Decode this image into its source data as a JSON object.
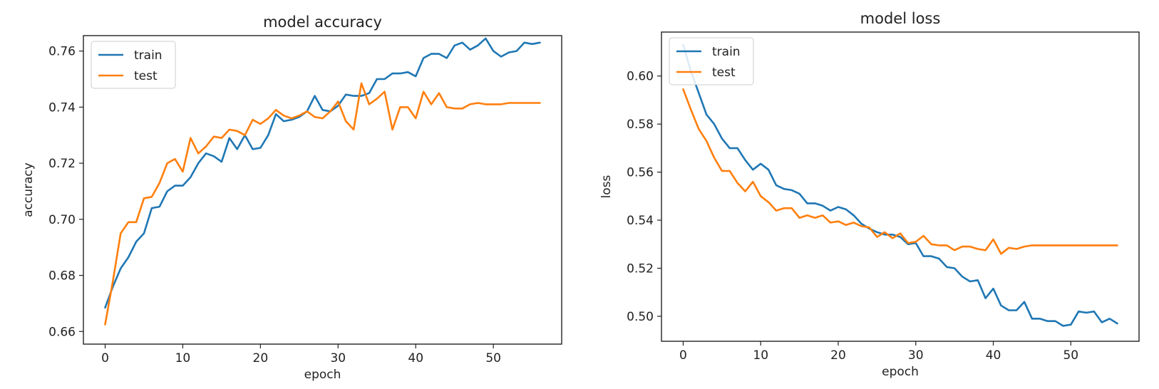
{
  "chart_data": [
    {
      "type": "line",
      "title": "model accuracy",
      "xlabel": "epoch",
      "ylabel": "accuracy",
      "xlim": [
        -2.8,
        58.8
      ],
      "ylim": [
        0.6555,
        0.7655
      ],
      "x_ticks": [
        0,
        10,
        20,
        30,
        40,
        50
      ],
      "y_ticks": [
        0.66,
        0.68,
        0.7,
        0.72,
        0.74,
        0.76
      ],
      "y_tick_labels": [
        "0.66",
        "0.68",
        "0.70",
        "0.72",
        "0.74",
        "0.76"
      ],
      "legend_position": "top-left",
      "grid": false,
      "series": [
        {
          "name": "train",
          "color": "#1f77b4",
          "values": [
            0.6685,
            0.676,
            0.6825,
            0.6865,
            0.692,
            0.695,
            0.704,
            0.7045,
            0.71,
            0.712,
            0.712,
            0.715,
            0.72,
            0.7235,
            0.7225,
            0.7205,
            0.729,
            0.725,
            0.73,
            0.725,
            0.7255,
            0.73,
            0.7375,
            0.735,
            0.7355,
            0.7365,
            0.7385,
            0.744,
            0.739,
            0.7385,
            0.7405,
            0.7445,
            0.744,
            0.744,
            0.745,
            0.75,
            0.75,
            0.752,
            0.752,
            0.7525,
            0.751,
            0.7575,
            0.759,
            0.759,
            0.7575,
            0.762,
            0.763,
            0.7605,
            0.762,
            0.7645,
            0.76,
            0.758,
            0.7595,
            0.76,
            0.763,
            0.7625,
            0.763
          ]
        },
        {
          "name": "test",
          "color": "#ff7f0e",
          "values": [
            0.6625,
            0.678,
            0.695,
            0.699,
            0.699,
            0.7075,
            0.708,
            0.713,
            0.72,
            0.7215,
            0.717,
            0.729,
            0.7235,
            0.726,
            0.7295,
            0.729,
            0.732,
            0.7315,
            0.73,
            0.7355,
            0.734,
            0.736,
            0.739,
            0.737,
            0.736,
            0.737,
            0.7385,
            0.7365,
            0.736,
            0.7385,
            0.742,
            0.735,
            0.732,
            0.7485,
            0.741,
            0.743,
            0.7455,
            0.732,
            0.74,
            0.74,
            0.736,
            0.7455,
            0.741,
            0.745,
            0.74,
            0.7395,
            0.7395,
            0.741,
            0.7415,
            0.741,
            0.741,
            0.741,
            0.7415,
            0.7415,
            0.7415,
            0.7415,
            0.7415
          ]
        }
      ]
    },
    {
      "type": "line",
      "title": "model loss",
      "xlabel": "epoch",
      "ylabel": "loss",
      "xlim": [
        -2.8,
        58.8
      ],
      "ylim": [
        0.4896,
        0.6183
      ],
      "x_ticks": [
        0,
        10,
        20,
        30,
        40,
        50
      ],
      "y_ticks": [
        0.5,
        0.52,
        0.54,
        0.56,
        0.58,
        0.6
      ],
      "y_tick_labels": [
        "0.50",
        "0.52",
        "0.54",
        "0.56",
        "0.58",
        "0.60"
      ],
      "legend_position": "top-left",
      "grid": false,
      "series": [
        {
          "name": "train",
          "color": "#1f77b4",
          "values": [
            0.613,
            0.602,
            0.593,
            0.584,
            0.58,
            0.574,
            0.57,
            0.57,
            0.565,
            0.561,
            0.5635,
            0.561,
            0.5545,
            0.553,
            0.5525,
            0.551,
            0.547,
            0.547,
            0.546,
            0.544,
            0.5455,
            0.5445,
            0.542,
            0.5385,
            0.5365,
            0.535,
            0.534,
            0.534,
            0.533,
            0.53,
            0.5305,
            0.525,
            0.525,
            0.524,
            0.5205,
            0.52,
            0.5165,
            0.5145,
            0.515,
            0.5075,
            0.5115,
            0.5045,
            0.5025,
            0.5025,
            0.506,
            0.499,
            0.499,
            0.498,
            0.498,
            0.496,
            0.4965,
            0.502,
            0.5015,
            0.502,
            0.4975,
            0.499,
            0.497
          ]
        },
        {
          "name": "test",
          "color": "#ff7f0e",
          "values": [
            0.5945,
            0.586,
            0.578,
            0.573,
            0.566,
            0.5605,
            0.5605,
            0.5555,
            0.552,
            0.556,
            0.55,
            0.5475,
            0.544,
            0.545,
            0.545,
            0.541,
            0.542,
            0.541,
            0.542,
            0.539,
            0.5395,
            0.538,
            0.539,
            0.5375,
            0.537,
            0.533,
            0.535,
            0.5325,
            0.5345,
            0.5305,
            0.531,
            0.5335,
            0.53,
            0.5295,
            0.5295,
            0.5275,
            0.529,
            0.529,
            0.528,
            0.5275,
            0.532,
            0.526,
            0.5285,
            0.528,
            0.529,
            0.5295,
            0.5295,
            0.5295,
            0.5295,
            0.5295,
            0.5295,
            0.5295,
            0.5295,
            0.5295,
            0.5295,
            0.5295,
            0.5295
          ]
        }
      ]
    }
  ]
}
